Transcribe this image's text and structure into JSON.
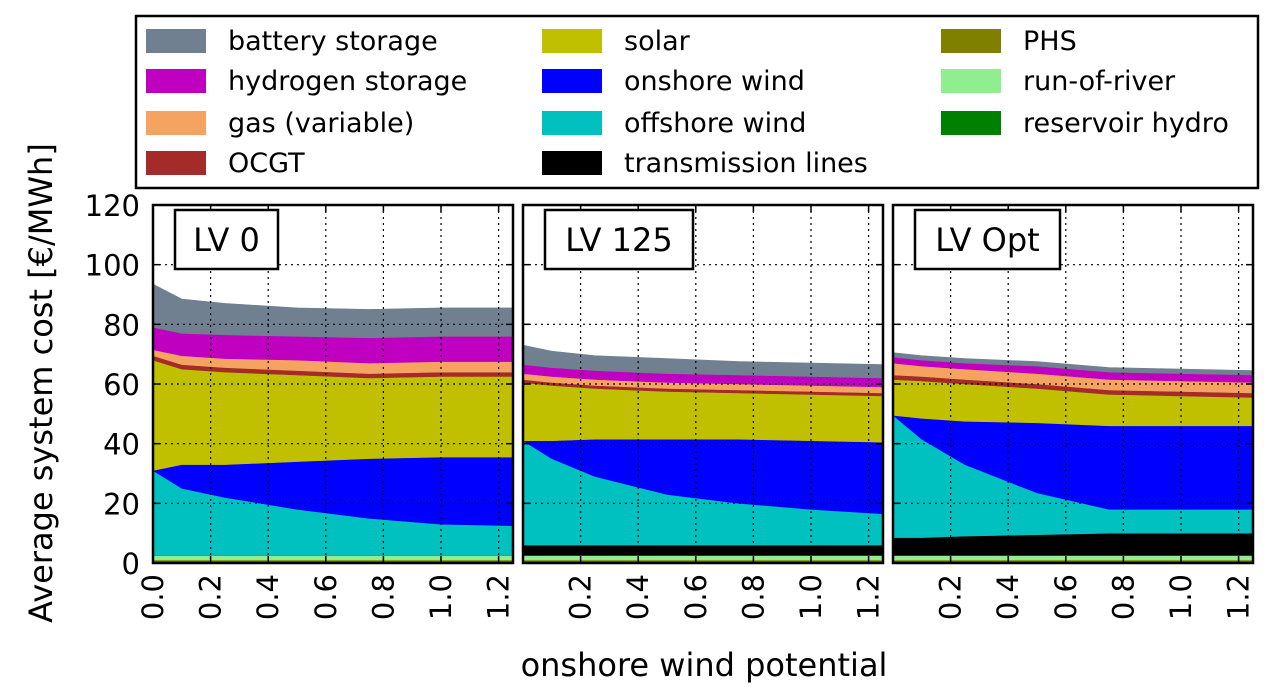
{
  "chart_data": {
    "type": "area",
    "stacked": true,
    "ylabel": "Average system cost [€/MWh]",
    "xlabel": "onshore wind potential",
    "ylim": [
      0,
      120
    ],
    "yticks": [
      "0",
      "20",
      "40",
      "60",
      "80",
      "100",
      "120"
    ],
    "grid": true,
    "legend": {
      "placement": "top",
      "columns": [
        [
          {
            "name": "battery storage",
            "color": "#708090"
          },
          {
            "name": "hydrogen storage",
            "color": "#c000c0"
          },
          {
            "name": "gas (variable)",
            "color": "#f4a460"
          },
          {
            "name": "OCGT",
            "color": "#a52a2a"
          }
        ],
        [
          {
            "name": "solar",
            "color": "#c0c000"
          },
          {
            "name": "onshore wind",
            "color": "#0000ff"
          },
          {
            "name": "offshore wind",
            "color": "#00c0c0"
          },
          {
            "name": "transmission lines",
            "color": "#000000"
          }
        ],
        [
          {
            "name": "PHS",
            "color": "#808000"
          },
          {
            "name": "run-of-river",
            "color": "#90ee90"
          },
          {
            "name": "reservoir hydro",
            "color": "#008000"
          }
        ]
      ]
    },
    "stack_order": [
      "reservoir hydro",
      "PHS",
      "run-of-river",
      "transmission lines",
      "offshore wind",
      "onshore wind",
      "solar",
      "OCGT",
      "gas (variable)",
      "hydrogen storage",
      "battery storage"
    ],
    "panels": [
      {
        "title": "LV 0",
        "x": [
          0,
          0.1,
          0.25,
          0.5,
          0.75,
          1.0,
          1.25
        ],
        "xlim": [
          0,
          1.25
        ],
        "xticks": [
          "0.0",
          "0.2",
          "0.4",
          "0.6",
          "0.8",
          "1.0",
          "1.2"
        ],
        "series": [
          {
            "name": "reservoir hydro",
            "values": [
              0.6,
              0.6,
              0.6,
              0.6,
              0.6,
              0.6,
              0.6
            ]
          },
          {
            "name": "PHS",
            "values": [
              0.4,
              0.4,
              0.4,
              0.4,
              0.4,
              0.4,
              0.4
            ]
          },
          {
            "name": "run-of-river",
            "values": [
              1.5,
              1.5,
              1.5,
              1.5,
              1.5,
              1.5,
              1.5
            ]
          },
          {
            "name": "transmission lines",
            "values": [
              0,
              0,
              0,
              0,
              0,
              0,
              0
            ]
          },
          {
            "name": "offshore wind",
            "values": [
              28.5,
              22.5,
              19.5,
              15.5,
              12.5,
              10.5,
              10
            ]
          },
          {
            "name": "onshore wind",
            "values": [
              0,
              8,
              11,
              16,
              20,
              22.5,
              23
            ]
          },
          {
            "name": "solar",
            "values": [
              37,
              32,
              31,
              29,
              27,
              27,
              27
            ]
          },
          {
            "name": "OCGT",
            "values": [
              1.5,
              1.5,
              1.5,
              1.5,
              1.5,
              1.5,
              1.5
            ]
          },
          {
            "name": "gas (variable)",
            "values": [
              2,
              3,
              3,
              3.5,
              3.5,
              3.5,
              3.5
            ]
          },
          {
            "name": "hydrogen storage",
            "values": [
              7.5,
              7.5,
              8,
              8,
              8.5,
              8.5,
              8.5
            ]
          },
          {
            "name": "battery storage",
            "values": [
              14.5,
              11.5,
              10.5,
              9.5,
              9.5,
              9.5,
              9.5
            ]
          }
        ]
      },
      {
        "title": "LV 125",
        "x": [
          0,
          0.1,
          0.25,
          0.5,
          0.75,
          1.0,
          1.25
        ],
        "xlim": [
          0,
          1.25
        ],
        "xticks": [
          "0.2",
          "0.4",
          "0.6",
          "0.8",
          "1.0",
          "1.2"
        ],
        "series": [
          {
            "name": "reservoir hydro",
            "values": [
              0.6,
              0.6,
              0.6,
              0.6,
              0.6,
              0.6,
              0.6
            ]
          },
          {
            "name": "PHS",
            "values": [
              0.4,
              0.4,
              0.4,
              0.4,
              0.4,
              0.4,
              0.4
            ]
          },
          {
            "name": "run-of-river",
            "values": [
              1.5,
              1.5,
              1.5,
              1.5,
              1.5,
              1.5,
              1.5
            ]
          },
          {
            "name": "transmission lines",
            "values": [
              3.5,
              3.5,
              3.5,
              3.5,
              3.5,
              3.5,
              3.5
            ]
          },
          {
            "name": "offshore wind",
            "values": [
              35,
              29,
              23,
              17,
              14,
              12,
              10.5
            ]
          },
          {
            "name": "onshore wind",
            "values": [
              0,
              6,
              12.5,
              18.5,
              21.5,
              23,
              24
            ]
          },
          {
            "name": "solar",
            "values": [
              19.5,
              18.5,
              17,
              16,
              15.5,
              15.5,
              15.5
            ]
          },
          {
            "name": "OCGT",
            "values": [
              1,
              1,
              1,
              1,
              1,
              1,
              1
            ]
          },
          {
            "name": "gas (variable)",
            "values": [
              2,
              2,
              2,
              2,
              2,
              2,
              2
            ]
          },
          {
            "name": "hydrogen storage",
            "values": [
              3,
              3,
              3,
              3,
              3,
              3,
              3
            ]
          },
          {
            "name": "battery storage",
            "values": [
              6.5,
              5.5,
              5,
              5,
              4.5,
              4.5,
              4.5
            ]
          }
        ]
      },
      {
        "title": "LV Opt",
        "x": [
          0,
          0.1,
          0.25,
          0.5,
          0.75,
          1.0,
          1.25
        ],
        "xlim": [
          0,
          1.25
        ],
        "xticks": [
          "0.2",
          "0.4",
          "0.6",
          "0.8",
          "1.0",
          "1.2"
        ],
        "series": [
          {
            "name": "reservoir hydro",
            "values": [
              0.6,
              0.6,
              0.6,
              0.6,
              0.6,
              0.6,
              0.6
            ]
          },
          {
            "name": "PHS",
            "values": [
              0.4,
              0.4,
              0.4,
              0.4,
              0.4,
              0.4,
              0.4
            ]
          },
          {
            "name": "run-of-river",
            "values": [
              1.5,
              1.5,
              1.5,
              1.5,
              1.5,
              1.5,
              1.5
            ]
          },
          {
            "name": "transmission lines",
            "values": [
              6,
              6,
              6.5,
              7,
              7.5,
              7.5,
              7.5
            ]
          },
          {
            "name": "offshore wind",
            "values": [
              41,
              33,
              24,
              14,
              8,
              8,
              8
            ]
          },
          {
            "name": "onshore wind",
            "values": [
              0,
              7,
              14.5,
              23.5,
              28,
              28,
              28
            ]
          },
          {
            "name": "solar",
            "values": [
              12,
              12.5,
              12.5,
              11.5,
              10.5,
              10,
              9.5
            ]
          },
          {
            "name": "OCGT",
            "values": [
              1.5,
              1.5,
              1.5,
              1.5,
              1.5,
              1.5,
              1.5
            ]
          },
          {
            "name": "gas (variable)",
            "values": [
              4,
              3.5,
              3.5,
              3.5,
              3.5,
              3.5,
              3.5
            ]
          },
          {
            "name": "hydrogen storage",
            "values": [
              2,
              2,
              2,
              2.5,
              2.5,
              2.5,
              2.5
            ]
          },
          {
            "name": "battery storage",
            "values": [
              1.5,
              1.5,
              1.5,
              1.5,
              1.5,
              1.5,
              1.5
            ]
          }
        ]
      }
    ]
  }
}
